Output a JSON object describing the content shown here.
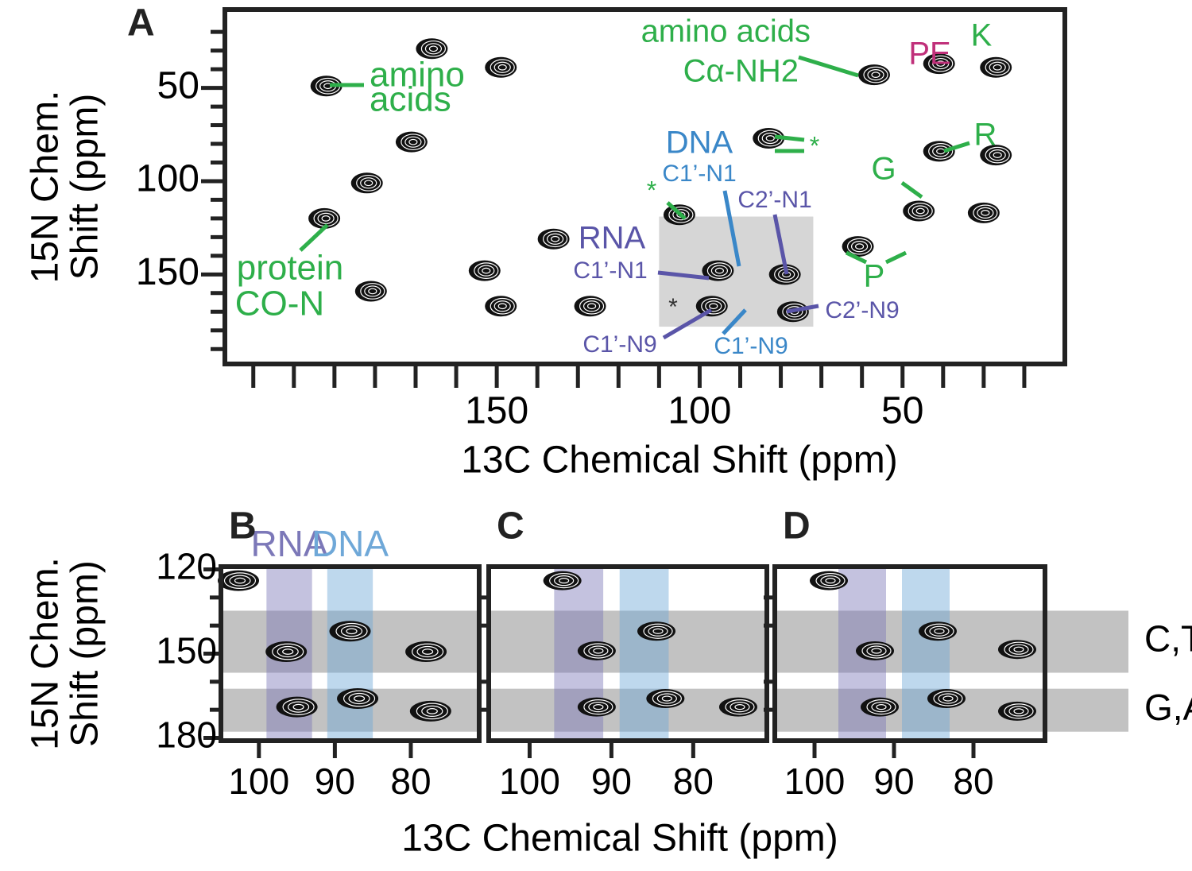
{
  "chart_data": [
    {
      "type": "contour",
      "panel": "A",
      "xlabel": "13C Chemical Shift (ppm)",
      "ylabel": [
        "15N Chem.",
        "Shift (ppm)"
      ],
      "xlim": [
        217,
        10
      ],
      "ylim": [
        8,
        198
      ],
      "xticks": [
        150,
        100,
        50
      ],
      "yticks": [
        50,
        100,
        150
      ],
      "xminorticks": [
        210,
        200,
        190,
        180,
        170,
        160,
        140,
        130,
        120,
        110,
        90,
        80,
        70,
        60,
        40,
        30,
        20
      ],
      "yminorticks": [
        20,
        30,
        40,
        60,
        70,
        80,
        90,
        110,
        120,
        130,
        140,
        160,
        170,
        180,
        190
      ],
      "shaded_region": {
        "x": [
          110,
          72
        ],
        "y": [
          119,
          178
        ]
      },
      "peaks": {
        "x": [
          192,
          171,
          192.5,
          166,
          149,
          153,
          149,
          136,
          105,
          95.5,
          97,
          79,
          77,
          57,
          41,
          27,
          41,
          27,
          46,
          61,
          30,
          127,
          83,
          182,
          181
        ],
        "y": [
          49,
          79,
          120,
          29,
          39,
          148,
          167,
          131,
          118,
          148,
          167,
          150,
          170,
          43,
          37,
          39,
          84,
          86,
          116,
          135,
          117,
          167,
          77,
          101,
          159
        ]
      },
      "annotations": [
        {
          "text": "amino",
          "color": "#2eaf4a"
        },
        {
          "text": "acids",
          "color": "#2eaf4a"
        },
        {
          "text": "amino acids",
          "color": "#2eaf4a"
        },
        {
          "text": "Cα-NH2",
          "color": "#2eaf4a"
        },
        {
          "text": "PE",
          "color": "#c0307a"
        },
        {
          "text": "K",
          "color": "#2eaf4a"
        },
        {
          "text": "R",
          "color": "#2eaf4a"
        },
        {
          "text": "G",
          "color": "#2eaf4a"
        },
        {
          "text": "P",
          "color": "#2eaf4a"
        },
        {
          "text": "*",
          "color": "#2eaf4a"
        },
        {
          "text": "*",
          "color": "#2eaf4a"
        },
        {
          "text": "DNA",
          "color": "#3a87c8"
        },
        {
          "text": "C1’-N1",
          "color": "#3a87c8"
        },
        {
          "text": "C2’-N1",
          "color": "#5a55a8"
        },
        {
          "text": "RNA",
          "color": "#5a55a8"
        },
        {
          "text": "C1’-N1",
          "color": "#5a55a8"
        },
        {
          "text": "*",
          "color": "#333333"
        },
        {
          "text": "C1’-N9",
          "color": "#5a55a8"
        },
        {
          "text": "C1’-N9",
          "color": "#3a87c8"
        },
        {
          "text": "C2’-N9",
          "color": "#5a55a8"
        },
        {
          "text": "protein",
          "color": "#2eaf4a"
        },
        {
          "text": "CO-N",
          "color": "#2eaf4a"
        }
      ]
    },
    {
      "type": "contour",
      "panel": "B",
      "ylabel": [
        "15N Chem.",
        "Shift (ppm)"
      ],
      "xlim": [
        105,
        71
      ],
      "ylim": [
        119,
        181
      ],
      "xticks": [
        100,
        90,
        80
      ],
      "yticks": [
        120,
        150,
        180
      ],
      "yminorticks": [
        130,
        140,
        160,
        170
      ],
      "bands": [
        {
          "name": "RNA",
          "x": [
            99,
            93
          ],
          "color": "#7c78b8"
        },
        {
          "name": "DNA",
          "x": [
            91,
            85
          ],
          "color": "#6fa8d8"
        }
      ],
      "rows": [
        {
          "y": [
            134.7,
            156.8
          ]
        },
        {
          "y": [
            162.5,
            177.8
          ]
        }
      ],
      "peaks": {
        "x": [
          96.4,
          88,
          78,
          95,
          87,
          77.4,
          102.7
        ],
        "y": [
          149.3,
          142,
          149.3,
          169,
          166,
          170.5,
          124
        ]
      }
    },
    {
      "type": "contour",
      "panel": "C",
      "xlim": [
        105,
        71
      ],
      "ylim": [
        119,
        181
      ],
      "xticks": [
        100,
        90,
        80
      ],
      "yminorticks": [
        130,
        140,
        160,
        170
      ],
      "bands": [
        {
          "x": [
            97,
            91
          ],
          "color": "#7c78b8"
        },
        {
          "x": [
            89,
            83
          ],
          "color": "#6fa8d8"
        }
      ],
      "rows": [
        {
          "y": [
            134.7,
            156.8
          ]
        },
        {
          "y": [
            162.5,
            177.8
          ]
        }
      ],
      "peaks": {
        "x": [
          91.8,
          84.5,
          91.8,
          83.4,
          74.5,
          96
        ],
        "y": [
          149,
          142,
          169,
          166,
          169,
          124
        ]
      }
    },
    {
      "type": "contour",
      "panel": "D",
      "xlabel": "13C Chemical Shift (ppm)",
      "xlim": [
        105,
        71
      ],
      "ylim": [
        119,
        181
      ],
      "xticks": [
        100,
        90,
        80
      ],
      "yminorticks": [
        130,
        140,
        160,
        170
      ],
      "bands": [
        {
          "x": [
            97,
            91
          ],
          "color": "#7c78b8"
        },
        {
          "x": [
            89,
            83
          ],
          "color": "#6fa8d8"
        }
      ],
      "rows": [
        {
          "y": [
            134.7,
            156.8
          ],
          "label": "C,T,U"
        },
        {
          "y": [
            162.5,
            177.8
          ],
          "label": "G,A"
        }
      ],
      "peaks": {
        "x": [
          92.4,
          84.5,
          74.5,
          91.8,
          83.4,
          74.5,
          98.2
        ],
        "y": [
          149,
          142,
          148.5,
          169,
          166,
          170.5,
          124
        ]
      }
    }
  ]
}
